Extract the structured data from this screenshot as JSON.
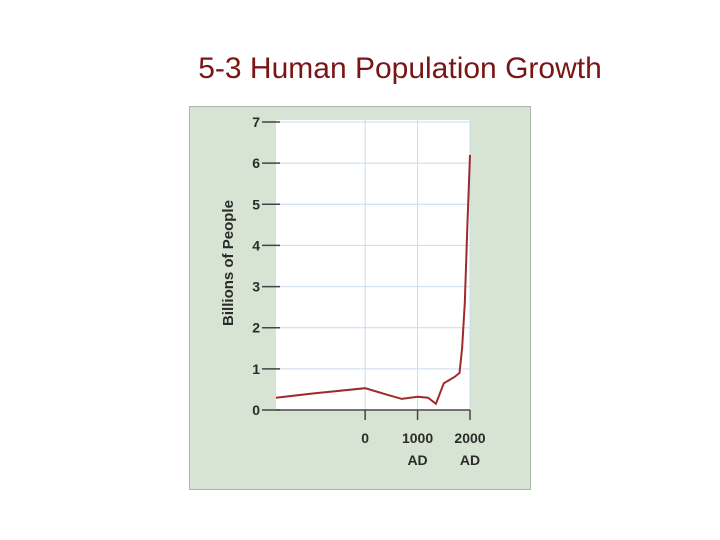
{
  "slide": {
    "title": "5-3 Human Population Growth"
  },
  "colors": {
    "title": "#7a1515",
    "panel": "#d7e4d3",
    "plot_bg": "#ffffff",
    "grid": "#c9dced",
    "line": "#9e2a2a"
  },
  "chart_data": {
    "type": "line",
    "title": "",
    "xlabel": "",
    "ylabel": "Billions of People",
    "ylim": [
      0,
      7
    ],
    "xlim": [
      -1700,
      2000
    ],
    "yticks": [
      0,
      1,
      2,
      3,
      4,
      5,
      6,
      7
    ],
    "xticks": [
      {
        "value": 0,
        "label": "0"
      },
      {
        "value": 1000,
        "label": "1000",
        "sublabel": "AD"
      },
      {
        "value": 2000,
        "label": "2000",
        "sublabel": "AD"
      }
    ],
    "grid": true,
    "series": [
      {
        "x": [
          -1700,
          -1000,
          0,
          400,
          700,
          1000,
          1200,
          1350,
          1500,
          1700,
          1800,
          1850,
          1900,
          1950,
          2000
        ],
        "y": [
          0.3,
          0.4,
          0.53,
          0.38,
          0.27,
          0.32,
          0.3,
          0.15,
          0.65,
          0.8,
          0.9,
          1.5,
          2.6,
          4.5,
          6.2
        ]
      }
    ]
  }
}
